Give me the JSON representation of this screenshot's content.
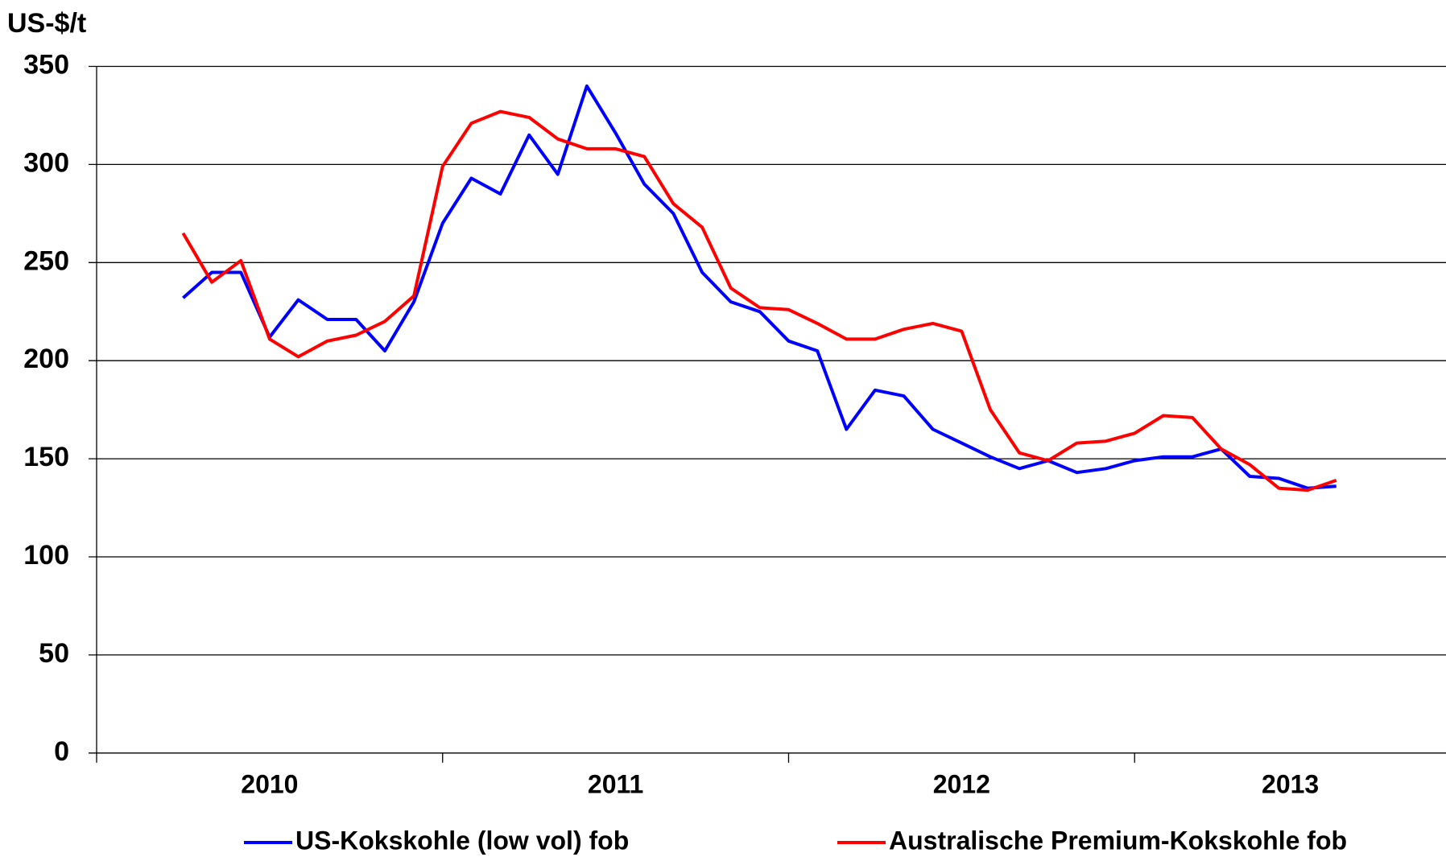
{
  "chart_data": {
    "type": "line",
    "y_axis_label": "US-$/t",
    "x": [
      2010.25,
      2010.333,
      2010.417,
      2010.5,
      2010.583,
      2010.667,
      2010.75,
      2010.833,
      2010.917,
      2011,
      2011.083,
      2011.167,
      2011.25,
      2011.333,
      2011.417,
      2011.5,
      2011.583,
      2011.667,
      2011.75,
      2011.833,
      2011.917,
      2012,
      2012.083,
      2012.167,
      2012.25,
      2012.333,
      2012.417,
      2012.5,
      2012.583,
      2012.667,
      2012.75,
      2012.833,
      2012.917,
      2013,
      2013.083,
      2013.167,
      2013.25,
      2013.333,
      2013.417,
      2013.5,
      2013.583
    ],
    "series": [
      {
        "name": "US-Kokskohle (low vol) fob",
        "color": "#0000ff",
        "values": [
          232,
          245,
          245,
          212,
          231,
          221,
          221,
          205,
          230,
          270,
          293,
          285,
          315,
          295,
          340,
          316,
          290,
          275,
          245,
          230,
          225,
          210,
          205,
          165,
          185,
          182,
          165,
          158,
          151,
          145,
          149,
          143,
          145,
          149,
          151,
          151,
          155,
          141,
          140,
          135,
          136
        ]
      },
      {
        "name": "Australische Premium-Kokskohle fob",
        "color": "#ff0000",
        "values": [
          265,
          240,
          251,
          211,
          202,
          210,
          213,
          220,
          233,
          299,
          321,
          327,
          324,
          313,
          308,
          308,
          304,
          280,
          268,
          237,
          227,
          226,
          219,
          211,
          211,
          216,
          219,
          215,
          175,
          153,
          149,
          158,
          159,
          163,
          172,
          171,
          155,
          147,
          135,
          134,
          139
        ]
      }
    ],
    "xlim": [
      2010,
      2013.9
    ],
    "xticks": [
      2010,
      2011,
      2012,
      2013
    ],
    "ylim": [
      0,
      350
    ],
    "yticks": [
      0,
      50,
      100,
      150,
      200,
      250,
      300,
      350
    ],
    "grid": true
  }
}
